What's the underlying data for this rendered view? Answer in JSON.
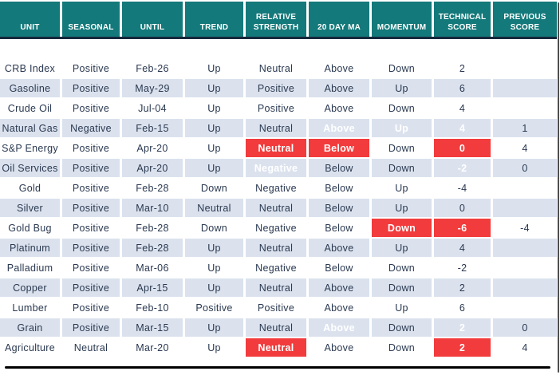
{
  "colors": {
    "header_bg": "#14797a",
    "header_text": "#ffffff",
    "header_divider": "#16283c",
    "row_stripe": "#dbe2ee",
    "body_text": "#2a3950",
    "green": "#8cc63f",
    "red": "#f23b3c",
    "highlight_text": "#ffffff",
    "bottom_rule": "#000000",
    "frame_edge": "#4f4f4f"
  },
  "chart_data": {
    "type": "table",
    "columns": [
      {
        "label": "UNIT"
      },
      {
        "label": "SEASONAL"
      },
      {
        "label": "UNTIL"
      },
      {
        "label": "TREND"
      },
      {
        "label": "RELATIVE STRENGTH"
      },
      {
        "label": "20 DAY MA"
      },
      {
        "label": "MOMENTUM"
      },
      {
        "label": "TECHNICAL SCORE"
      },
      {
        "label": "PREVIOUS SCORE"
      }
    ],
    "rows": [
      {
        "cells": [
          "CRB Index",
          "Positive",
          "Feb-26",
          "Up",
          "Neutral",
          "Above",
          "Down",
          "2",
          ""
        ],
        "hl": {}
      },
      {
        "cells": [
          "Gasoline",
          "Positive",
          "May-29",
          "Up",
          "Positive",
          "Above",
          "Up",
          "6",
          ""
        ],
        "hl": {}
      },
      {
        "cells": [
          "Crude Oil",
          "Positive",
          "Jul-04",
          "Up",
          "Positive",
          "Above",
          "Down",
          "4",
          ""
        ],
        "hl": {}
      },
      {
        "cells": [
          "Natural Gas",
          "Negative",
          "Feb-15",
          "Up",
          "Neutral",
          "Above",
          "Up",
          "4",
          "1"
        ],
        "hl": {
          "5": "green",
          "6": "green",
          "7": "green"
        }
      },
      {
        "cells": [
          "S&P Energy",
          "Positive",
          "Apr-20",
          "Up",
          "Neutral",
          "Below",
          "Down",
          "0",
          "4"
        ],
        "hl": {
          "4": "red",
          "5": "red",
          "7": "red"
        }
      },
      {
        "cells": [
          "Oil Services",
          "Positive",
          "Apr-20",
          "Up",
          "Negative",
          "Below",
          "Down",
          "-2",
          "0"
        ],
        "hl": {
          "4": "red",
          "7": "red"
        }
      },
      {
        "cells": [
          "Gold",
          "Positive",
          "Feb-28",
          "Down",
          "Negative",
          "Below",
          "Up",
          "-4",
          ""
        ],
        "hl": {}
      },
      {
        "cells": [
          "Silver",
          "Positive",
          "Mar-10",
          "Neutral",
          "Neutral",
          "Below",
          "Up",
          "0",
          ""
        ],
        "hl": {}
      },
      {
        "cells": [
          "Gold Bug",
          "Positive",
          "Feb-28",
          "Down",
          "Negative",
          "Below",
          "Down",
          "-6",
          "-4"
        ],
        "hl": {
          "6": "red",
          "7": "red"
        }
      },
      {
        "cells": [
          "Platinum",
          "Positive",
          "Feb-28",
          "Up",
          "Neutral",
          "Above",
          "Up",
          "4",
          ""
        ],
        "hl": {}
      },
      {
        "cells": [
          "Palladium",
          "Positive",
          "Mar-06",
          "Up",
          "Negative",
          "Below",
          "Down",
          "-2",
          ""
        ],
        "hl": {}
      },
      {
        "cells": [
          "Copper",
          "Positive",
          "Apr-15",
          "Up",
          "Neutral",
          "Above",
          "Down",
          "2",
          ""
        ],
        "hl": {}
      },
      {
        "cells": [
          "Lumber",
          "Positive",
          "Feb-10",
          "Positive",
          "Positive",
          "Above",
          "Up",
          "6",
          ""
        ],
        "hl": {}
      },
      {
        "cells": [
          "Grain",
          "Positive",
          "Mar-15",
          "Up",
          "Neutral",
          "Above",
          "Down",
          "2",
          "0"
        ],
        "hl": {
          "5": "green",
          "7": "green"
        }
      },
      {
        "cells": [
          "Agriculture",
          "Neutral",
          "Mar-20",
          "Up",
          "Neutral",
          "Above",
          "Down",
          "2",
          "4"
        ],
        "hl": {
          "4": "red",
          "7": "red"
        }
      }
    ]
  }
}
